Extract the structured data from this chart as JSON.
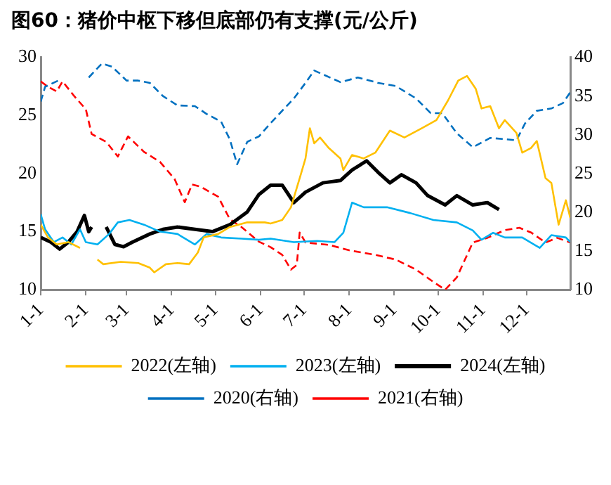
{
  "chart_data": {
    "type": "line",
    "title": "图60：猪价中枢下移但底部仍有支撑(元/公斤)",
    "xlim": [
      "--01-01",
      "--12-31"
    ],
    "xticks": [
      {
        "value": "--01-01",
        "label": "1-1"
      },
      {
        "value": "--02-01",
        "label": "2-1"
      },
      {
        "value": "--03-01",
        "label": "3-1"
      },
      {
        "value": "--04-01",
        "label": "4-1"
      },
      {
        "value": "--05-01",
        "label": "5-1"
      },
      {
        "value": "--06-01",
        "label": "6-1"
      },
      {
        "value": "--07-01",
        "label": "7-1"
      },
      {
        "value": "--08-01",
        "label": "8-1"
      },
      {
        "value": "--09-01",
        "label": "9-1"
      },
      {
        "value": "--10-01",
        "label": "10-1"
      },
      {
        "value": "--11-01",
        "label": "11-1"
      },
      {
        "value": "--12-01",
        "label": "12-1"
      }
    ],
    "ylim": [
      10,
      30
    ],
    "yticks": [
      10,
      15,
      20,
      25,
      30
    ],
    "y2lim": [
      10,
      40
    ],
    "y2ticks": [
      10,
      15,
      20,
      25,
      30,
      35,
      40
    ],
    "grid": false,
    "legend": "bottom",
    "marker": "none",
    "line_style": "solid",
    "series": [
      {
        "name": "2022(左轴)",
        "color": "#ffc000",
        "x": [
          "--01-01",
          "--01-06",
          "--01-12",
          "--01-20",
          "--01-28",
          "--02-03",
          "--02-09",
          "--02-13",
          "--02-25",
          "--03-09",
          "--03-17",
          "--03-20",
          "--03-28",
          "--04-05",
          "--04-13",
          "--04-19",
          "--04-23",
          "--05-03",
          "--05-11",
          "--05-23",
          "--06-04",
          "--06-08",
          "--06-16",
          "--06-22",
          "--06-28",
          "--07-02",
          "--07-05",
          "--07-08",
          "--07-12",
          "--07-18",
          "--07-26",
          "--07-28",
          "--08-03",
          "--08-11",
          "--08-19",
          "--08-29",
          "--09-08",
          "--09-20",
          "--09-30",
          "--10-08",
          "--10-15",
          "--10-21",
          "--10-27",
          "--10-31",
          "--11-06",
          "--11-12",
          "--11-16",
          "--11-24",
          "--11-28",
          "--12-04",
          "--12-08",
          "--12-14",
          "--12-18",
          "--12-23",
          "--12-28",
          "--12-31"
        ],
        "values": [
          15.6,
          14.5,
          13.9,
          14.1,
          13.6,
          null,
          12.6,
          12.2,
          12.4,
          12.3,
          11.9,
          11.5,
          12.2,
          12.3,
          12.2,
          13.2,
          14.5,
          14.8,
          15.4,
          15.8,
          15.8,
          15.7,
          16,
          17.1,
          19.6,
          21.3,
          23.9,
          22.6,
          23.1,
          22.2,
          21.3,
          20.3,
          21.6,
          21.3,
          21.8,
          23.7,
          23.1,
          23.9,
          24.6,
          26.3,
          28,
          28.4,
          27.3,
          25.6,
          25.8,
          23.9,
          24.6,
          23.5,
          21.8,
          22.2,
          22.8,
          19.6,
          19.2,
          15.6,
          17.7,
          16.2
        ]
      },
      {
        "name": "2023(左轴)",
        "color": "#00b0f0",
        "x": [
          "--01-01",
          "--01-04",
          "--01-10",
          "--01-16",
          "--01-22",
          "--01-28",
          "--02-01",
          "--02-09",
          "--02-17",
          "--02-23",
          "--03-03",
          "--03-13",
          "--03-24",
          "--04-05",
          "--04-17",
          "--04-25",
          "--05-05",
          "--05-19",
          "--05-31",
          "--06-08",
          "--06-24",
          "--07-10",
          "--07-22",
          "--07-28",
          "--08-03",
          "--08-11",
          "--08-27",
          "--09-12",
          "--09-28",
          "--10-14",
          "--10-25",
          "--10-31",
          "--11-08",
          "--11-16",
          "--11-28",
          "--12-10",
          "--12-18",
          "--12-28",
          "--12-31"
        ],
        "values": [
          16.5,
          15.2,
          14.1,
          14.5,
          13.9,
          15.2,
          14.1,
          13.9,
          14.8,
          15.8,
          16,
          15.6,
          15,
          14.8,
          13.9,
          14.8,
          14.5,
          14.4,
          14.3,
          14.4,
          14.1,
          14.2,
          14.1,
          14.9,
          17.5,
          17.1,
          17.1,
          16.6,
          16,
          15.8,
          15.1,
          14.3,
          14.9,
          14.5,
          14.5,
          13.6,
          14.7,
          14.5,
          14.1
        ]
      },
      {
        "name": "2024(左轴)",
        "color": "#000000",
        "x": [
          "--01-01",
          "--01-08",
          "--01-14",
          "--01-20",
          "--01-26",
          "--01-31",
          "--02-03",
          "--02-05",
          "--02-10",
          "--02-15",
          "--02-21",
          "--02-27",
          "--03-05",
          "--03-17",
          "--03-26",
          "--04-05",
          "--04-17",
          "--04-29",
          "--05-11",
          "--05-23",
          "--05-31",
          "--06-08",
          "--06-16",
          "--06-24",
          "--07-02",
          "--07-14",
          "--07-26",
          "--08-03",
          "--08-13",
          "--08-21",
          "--08-29",
          "--09-06",
          "--09-16",
          "--09-24",
          "--10-06",
          "--10-14",
          "--10-25",
          "--11-04",
          "--11-12"
        ],
        "values": [
          14.5,
          14.1,
          13.5,
          14.1,
          15,
          16.4,
          15,
          15.4,
          null,
          15.4,
          13.9,
          13.7,
          14.1,
          14.8,
          15.2,
          15.4,
          15.2,
          15,
          15.6,
          16.7,
          18.2,
          19,
          19,
          17.5,
          18.4,
          19.2,
          19.4,
          20.3,
          21.1,
          20.1,
          19.2,
          19.9,
          19.2,
          18.1,
          17.3,
          18.1,
          17.3,
          17.5,
          16.9
        ]
      },
      {
        "name": "2020(右轴)",
        "color": "#0070c0",
        "type": "line",
        "axis": "y2",
        "line_style": "dashed",
        "x": [
          "--01-01",
          "--01-04",
          "--01-13",
          "--01-23",
          "--02-03",
          "--02-12",
          "--02-19",
          "--03-01",
          "--03-09",
          "--03-17",
          "--03-26",
          "--04-05",
          "--04-17",
          "--04-25",
          "--05-05",
          "--05-11",
          "--05-16",
          "--05-23",
          "--05-31",
          "--06-08",
          "--06-24",
          "--07-02",
          "--07-08",
          "--07-26",
          "--08-07",
          "--08-21",
          "--09-02",
          "--09-16",
          "--09-26",
          "--10-04",
          "--10-14",
          "--10-25",
          "--11-06",
          "--11-24",
          "--11-30",
          "--12-08",
          "--12-18",
          "--12-26",
          "--12-31"
        ],
        "values": [
          34.3,
          36.2,
          37,
          null,
          37.4,
          39.2,
          38.8,
          37,
          37,
          36.7,
          35,
          33.8,
          33.7,
          32.7,
          31.7,
          29.4,
          26.2,
          29.1,
          29.8,
          31.5,
          34.7,
          36.7,
          38.3,
          36.8,
          37.4,
          36.7,
          36.3,
          34.7,
          32.8,
          32.8,
          30.2,
          28.4,
          29.6,
          29.3,
          31.5,
          33.1,
          33.4,
          34.1,
          35.5
        ]
      },
      {
        "name": "2021(右轴)",
        "color": "#ff0000",
        "type": "line",
        "axis": "y2",
        "line_style": "dashed",
        "x": [
          "--01-01",
          "--01-06",
          "--01-12",
          "--01-16",
          "--01-24",
          "--02-01",
          "--02-05",
          "--02-15",
          "--02-23",
          "--03-02",
          "--03-13",
          "--03-24",
          "--04-03",
          "--04-10",
          "--04-15",
          "--04-21",
          "--05-03",
          "--05-11",
          "--05-19",
          "--05-31",
          "--06-08",
          "--06-16",
          "--06-22",
          "--06-26",
          "--06-28",
          "--07-02",
          "--07-18",
          "--08-01",
          "--08-19",
          "--09-02",
          "--09-16",
          "--09-28",
          "--10-06",
          "--10-14",
          "--10-25",
          "--11-04",
          "--11-16",
          "--11-26",
          "--12-04",
          "--12-14",
          "--12-22",
          "--12-31"
        ],
        "values": [
          36.9,
          36.2,
          35.6,
          36.9,
          35,
          33.3,
          30.1,
          29.1,
          27.2,
          29.8,
          27.8,
          26.5,
          24.3,
          21.3,
          23.6,
          23.3,
          22,
          19.1,
          18.1,
          16.2,
          15.5,
          14.5,
          12.6,
          13.2,
          17.4,
          16.1,
          15.8,
          15.1,
          14.5,
          13.9,
          12.6,
          11,
          10,
          11.6,
          16.1,
          16.7,
          17.7,
          18,
          17.4,
          16.1,
          16.7,
          16.1
        ]
      }
    ]
  }
}
